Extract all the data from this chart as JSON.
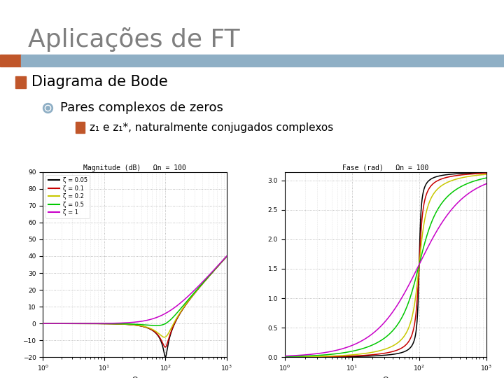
{
  "title": "Aplicações de FT",
  "title_color": "#7f7f7f",
  "header_bar_orange": "#c0562a",
  "header_bar_blue": "#8fafc5",
  "bullet1": "Diagrama de Bode",
  "bullet2": "Pares complexos de zeros",
  "bullet3": "z₁ e z₁*, naturalmente conjugados complexos",
  "omega_n": 100,
  "zetas": [
    0.05,
    0.1,
    0.2,
    0.5,
    1.0
  ],
  "line_colors": [
    "#000000",
    "#c80000",
    "#c8c800",
    "#00c800",
    "#c800c8"
  ],
  "legend_labels": [
    "ζ = 0.05",
    "ζ = 0.1",
    "ζ = 0.2",
    "ζ = 0.5",
    "ζ = 1"
  ],
  "mag_title": "Magnitude (dB)   Ωn = 100",
  "phase_title": "Fase (rad)   Ωn = 100",
  "xlabel": "Ω",
  "mag_ylim": [
    -20,
    90
  ],
  "mag_yticks": [
    -20,
    -10,
    0,
    10,
    20,
    30,
    40,
    50,
    60,
    70,
    80,
    90
  ],
  "phase_ylim": [
    0,
    3.14159
  ],
  "phase_yticks": [
    0,
    0.5,
    1.0,
    1.5,
    2.0,
    2.5,
    3.0
  ],
  "omega_range": [
    1,
    1000
  ],
  "background_color": "#ffffff",
  "plot_bg": "#ffffff",
  "grid_color": "#aaaaaa",
  "box_color": "#c0562a",
  "bullet_circle_color": "#8fafc5",
  "bullet_box_color": "#c0562a"
}
